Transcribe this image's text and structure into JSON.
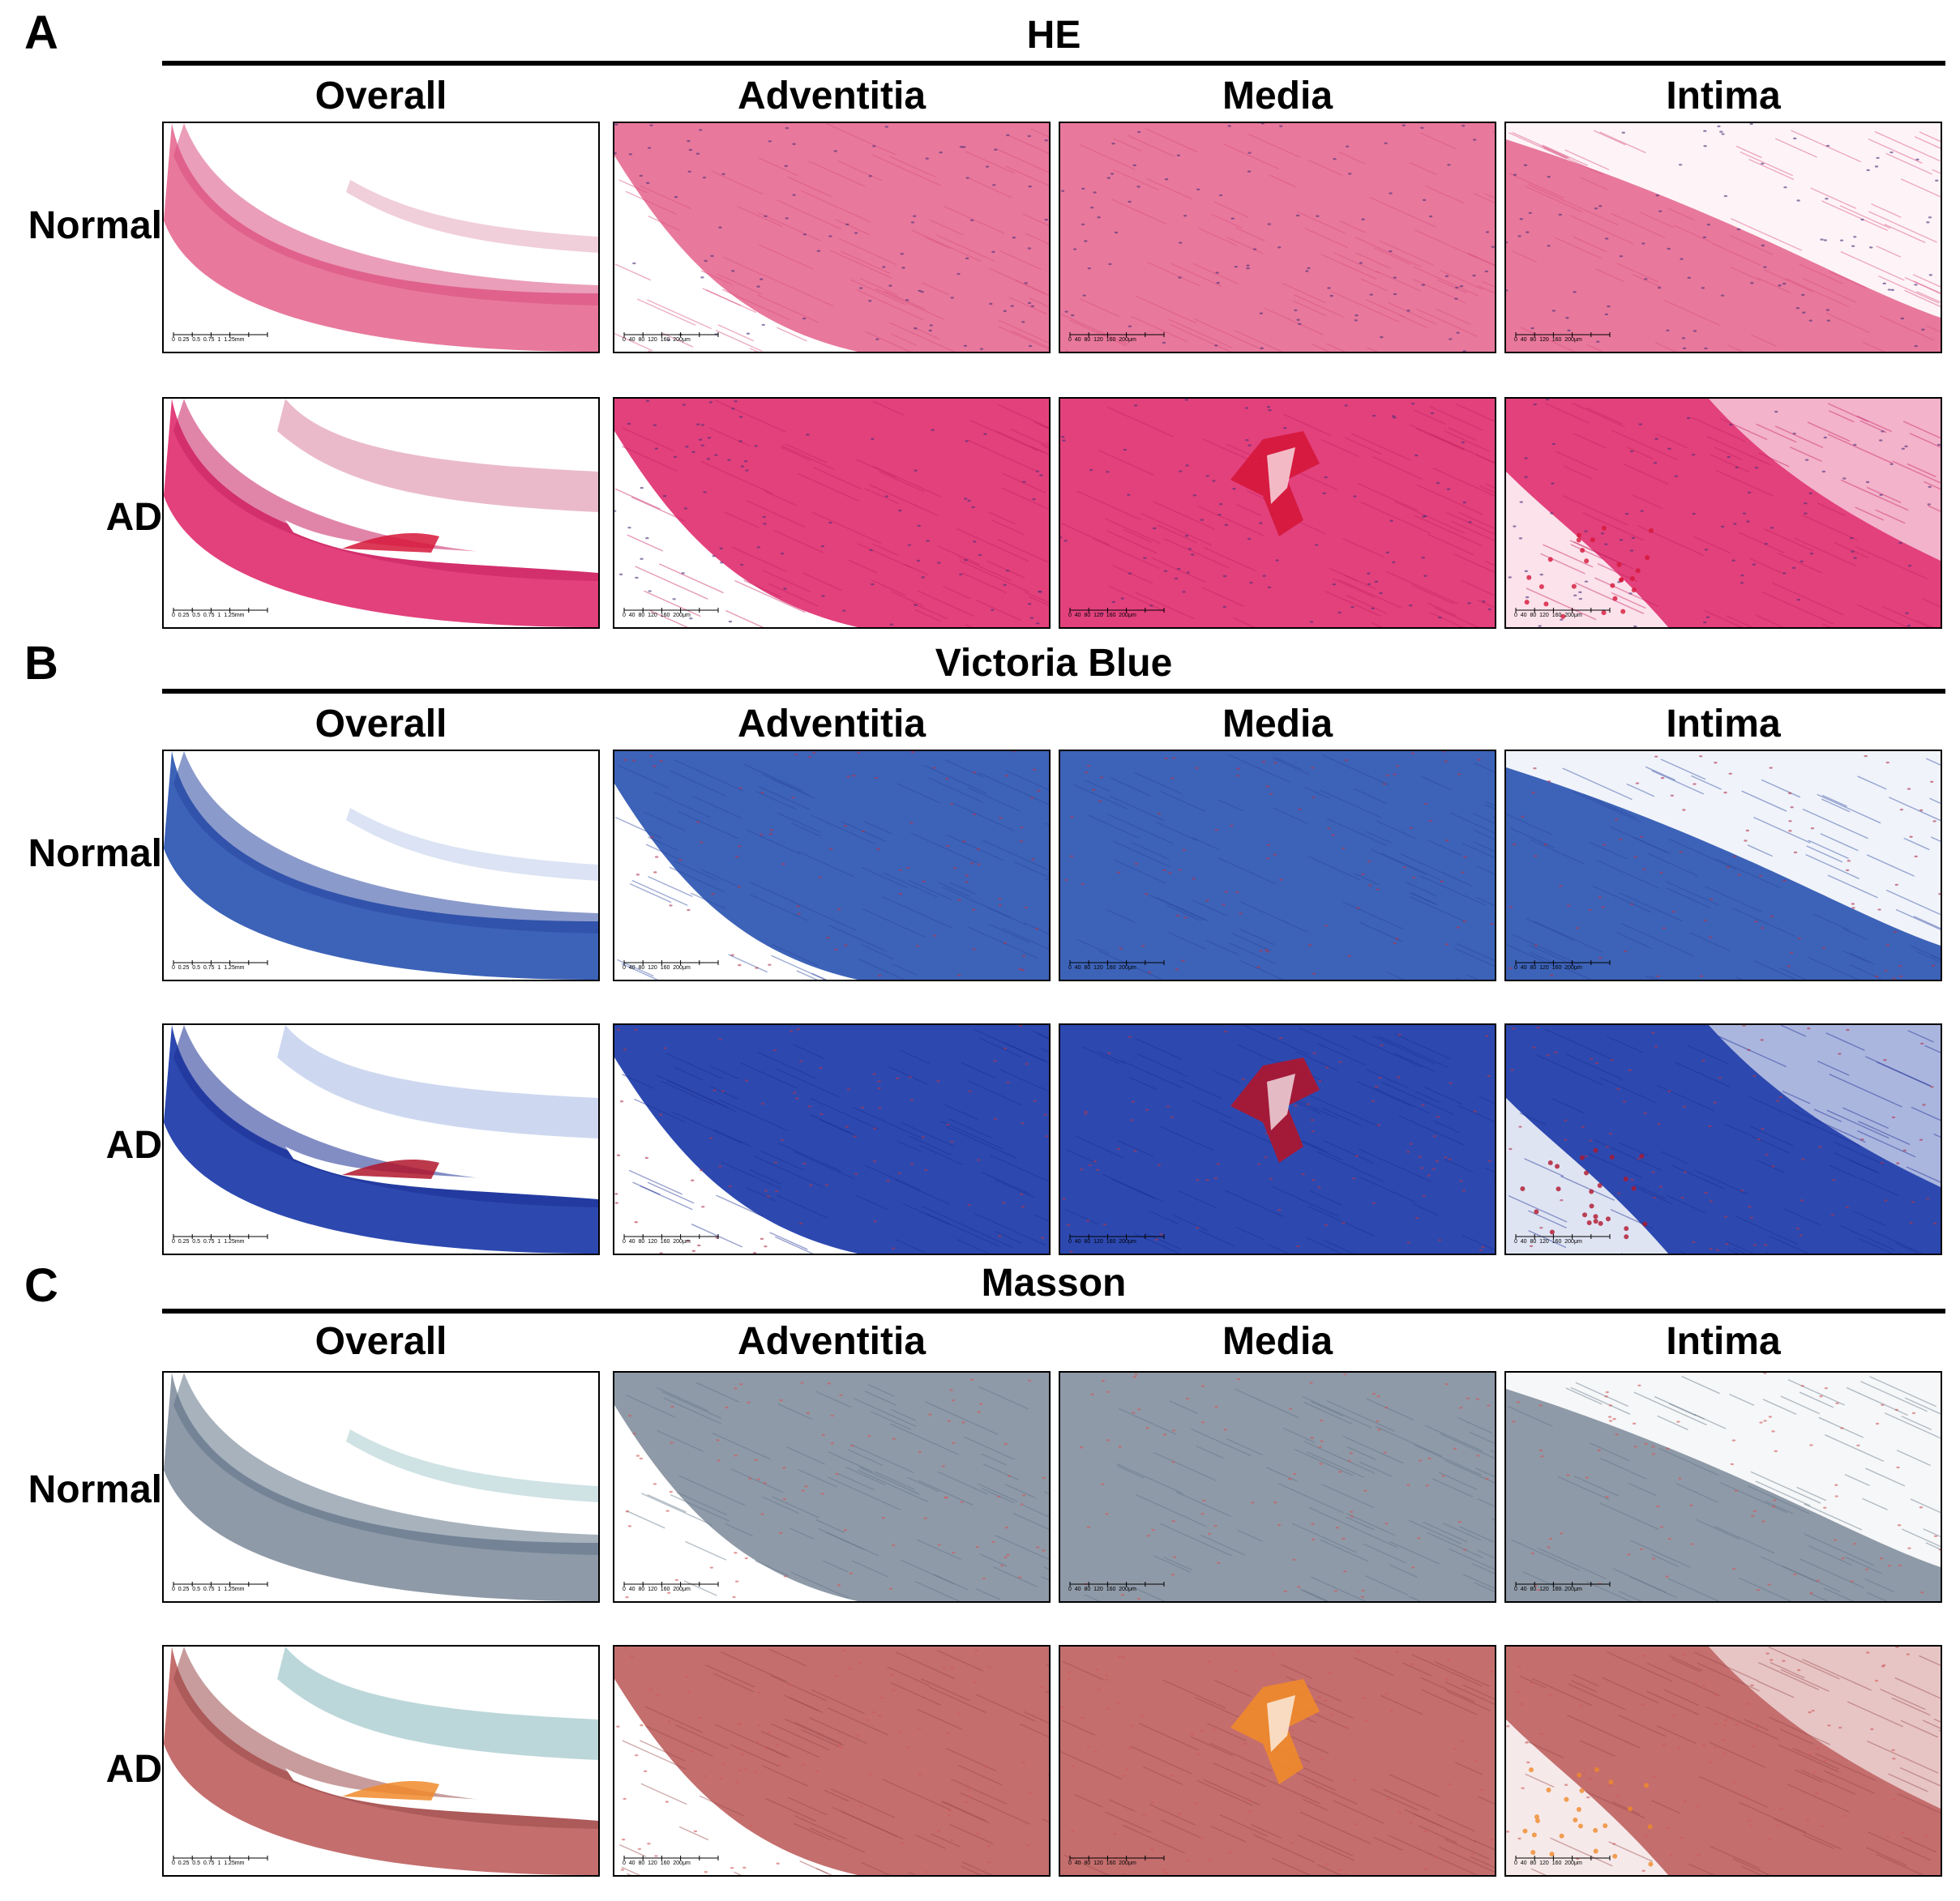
{
  "panels": [
    {
      "letter": "A",
      "stain": "HE",
      "columns": [
        "Overall",
        "Adventitia",
        "Media",
        "Intima"
      ],
      "rows": [
        "Normal",
        "AD"
      ],
      "palette": {
        "tissue": "#e8799c",
        "tissue_dark": "#d94e80",
        "fiber": "#c43a6a",
        "nuclei": "#4b2f7a",
        "lumen": "#ffffff",
        "ad_tissue": "#e2417c",
        "ad_dark": "#c72061",
        "blood": "#d6163a"
      }
    },
    {
      "letter": "B",
      "stain": "Victoria Blue",
      "columns": [
        "Overall",
        "Adventitia",
        "Media",
        "Intima"
      ],
      "rows": [
        "Normal",
        "AD"
      ],
      "palette": {
        "tissue": "#3d63b8",
        "tissue_dark": "#2a47a0",
        "fiber": "#6f8fd4",
        "nuclei": "#b0334d",
        "lumen": "#ffffff",
        "ad_tissue": "#2d49b0",
        "ad_dark": "#1c2f93",
        "blood": "#b0152c"
      }
    },
    {
      "letter": "C",
      "stain": "Masson",
      "columns": [
        "Overall",
        "Adventitia",
        "Media",
        "Intima"
      ],
      "rows": [
        "Normal",
        "AD"
      ],
      "palette": {
        "tissue": "#8f9aa8",
        "tissue_dark": "#5f7387",
        "fiber": "#3f8c95",
        "nuclei": "#d05a5a",
        "lumen": "#ffffff",
        "ad_tissue": "#c46e6e",
        "ad_dark": "#9b4a4a",
        "blood": "#f08a2a"
      }
    }
  ],
  "scalebars": {
    "overall": "0  0.25  0.5  0.75  1  1.25mm",
    "detail": "0  40  80  120  160  200μm"
  }
}
